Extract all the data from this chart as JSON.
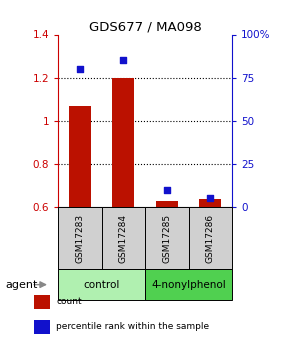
{
  "title": "GDS677 / MA098",
  "categories": [
    "GSM17283",
    "GSM17284",
    "GSM17285",
    "GSM17286"
  ],
  "red_values": [
    1.07,
    1.2,
    0.63,
    0.635
  ],
  "blue_values": [
    80,
    85,
    10,
    5
  ],
  "ylim_left": [
    0.6,
    1.4
  ],
  "ylim_right": [
    0,
    100
  ],
  "yticks_left": [
    0.6,
    0.8,
    1.0,
    1.2,
    1.4
  ],
  "ytick_labels_left": [
    "0.6",
    "0.8",
    "1",
    "1.2",
    "1.4"
  ],
  "yticks_right": [
    0,
    25,
    50,
    75,
    100
  ],
  "ytick_labels_right": [
    "0",
    "25",
    "50",
    "75",
    "100%"
  ],
  "groups": [
    {
      "label": "control",
      "span": [
        0,
        2
      ],
      "color": "#b0f0b0"
    },
    {
      "label": "4-nonylphenol",
      "span": [
        2,
        4
      ],
      "color": "#50d050"
    }
  ],
  "agent_label": "agent",
  "bar_color": "#bb1100",
  "dot_color": "#1111cc",
  "plot_bg": "#ffffff",
  "legend_items": [
    {
      "label": "count",
      "color": "#bb1100"
    },
    {
      "label": "percentile rank within the sample",
      "color": "#1111cc"
    }
  ]
}
